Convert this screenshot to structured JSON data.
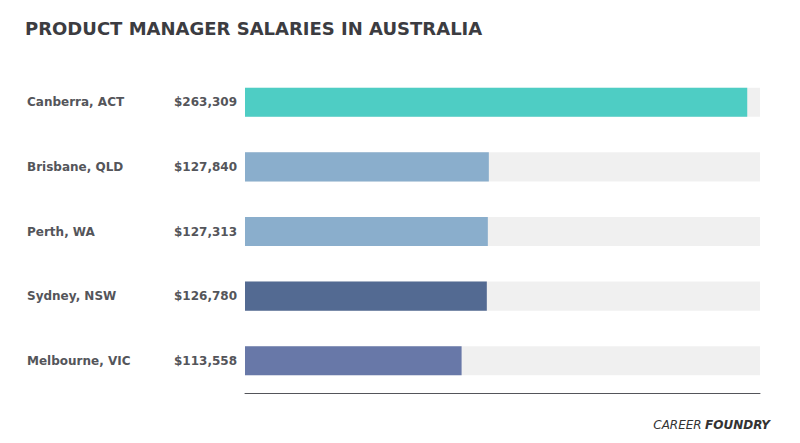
{
  "chart_data": {
    "type": "bar",
    "orientation": "horizontal",
    "title": "PRODUCT MANAGER SALARIES IN AUSTRALIA",
    "categories": [
      "Canberra, ACT",
      "Brisbane, QLD",
      "Perth, WA",
      "Sydney, NSW",
      "Melbourne, VIC"
    ],
    "values": [
      263309,
      127840,
      127313,
      126780,
      113558
    ],
    "value_labels": [
      "$263,309",
      "$127,840",
      "$127,313",
      "$126,780",
      "$113,558"
    ],
    "data_labels": true,
    "colors": [
      "#4ecdc4",
      "#8aaecc",
      "#8aaecc",
      "#536a92",
      "#6878a8"
    ],
    "xlim": [
      0,
      270000
    ],
    "tick_labels": false,
    "grid": false,
    "annotations": [
      "CAREER",
      "FOUNDRY"
    ]
  }
}
